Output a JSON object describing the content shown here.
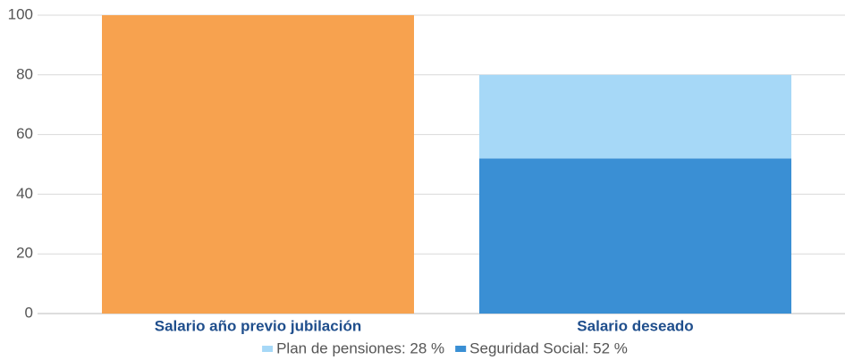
{
  "chart_data": {
    "type": "stacked_bar",
    "categories": [
      "Salario año previo jubilación",
      "Salario deseado"
    ],
    "series": [
      {
        "color": "#f7a24f",
        "values": [
          100,
          null
        ]
      },
      {
        "name": "Seguridad Social: 52 %",
        "color": "#3a8fd4",
        "values": [
          null,
          52
        ]
      },
      {
        "name": "Plan de pensiones: 28 %",
        "color": "#a6d8f7",
        "values": [
          null,
          28
        ]
      }
    ],
    "ylim": [
      0,
      100
    ],
    "yticks": [
      0,
      20,
      40,
      60,
      80,
      100
    ],
    "grid": true,
    "legend": "bottom"
  }
}
